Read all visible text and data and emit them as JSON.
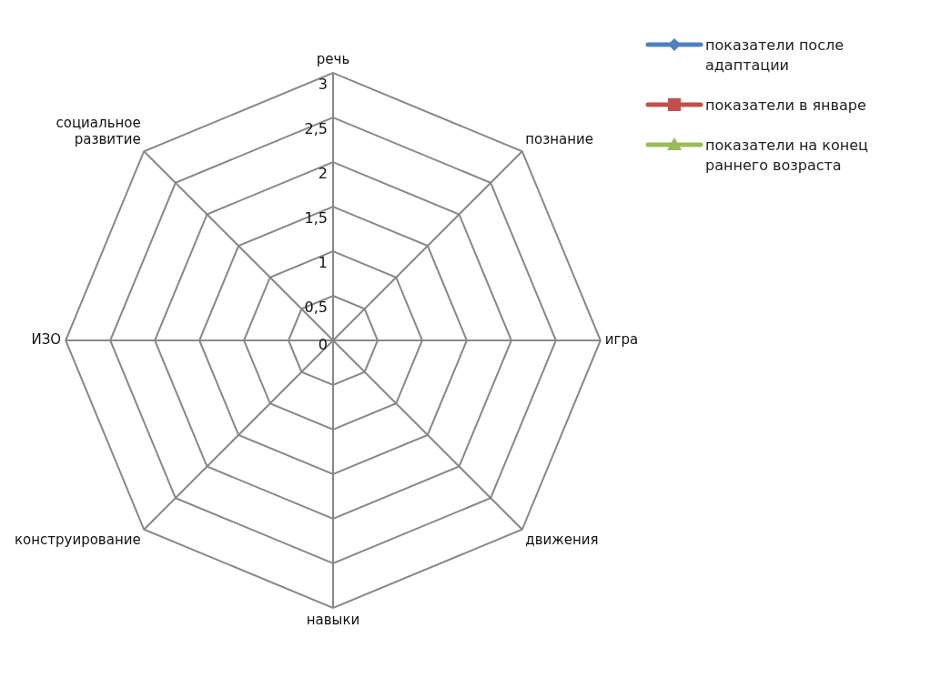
{
  "chart_data": {
    "type": "radar",
    "categories": [
      "речь",
      "познание",
      "игра",
      "движения",
      "навыки",
      "конструирование",
      "ИЗО",
      "социальное развитие"
    ],
    "series": [
      {
        "name": "показатели после адаптации",
        "color": "#4f81bd",
        "marker": "diamond",
        "values": [
          null,
          null,
          null,
          null,
          null,
          null,
          null,
          null
        ]
      },
      {
        "name": "показатели в январе",
        "color": "#c0504d",
        "marker": "square",
        "values": [
          null,
          null,
          null,
          null,
          null,
          null,
          null,
          null
        ]
      },
      {
        "name": "показатели на конец раннего возраста",
        "color": "#9bbb59",
        "marker": "triangle",
        "values": [
          null,
          null,
          null,
          null,
          null,
          null,
          null,
          null
        ]
      }
    ],
    "ylim": [
      0,
      3
    ],
    "yticks": [
      0,
      {
        "value": 0.5,
        "label": "0,5"
      },
      1,
      {
        "value": 1.5,
        "label": "1,5"
      },
      2,
      {
        "value": 2.5,
        "label": "2,5"
      },
      3
    ],
    "grid": true,
    "legend": "right"
  }
}
